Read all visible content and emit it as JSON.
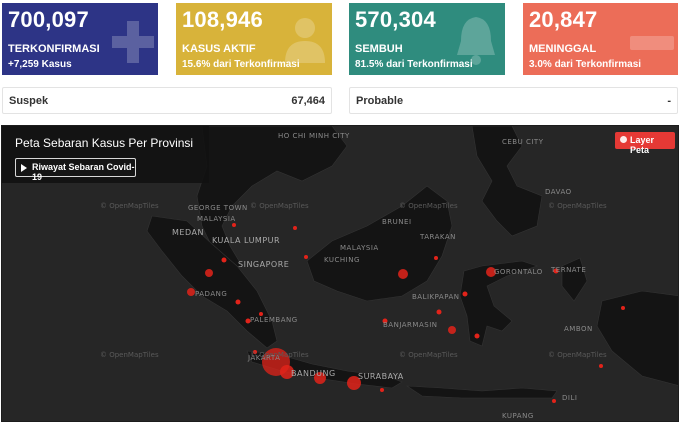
{
  "cards": [
    {
      "value": "700,097",
      "label": "TERKONFIRMASI",
      "sub": "+7,259 Kasus",
      "color": "#2d3486",
      "icon": "plus-icon"
    },
    {
      "value": "108,946",
      "label": "KASUS AKTIF",
      "sub": "15.6% dari Terkonfirmasi",
      "color": "#d8b33a",
      "icon": "patient-icon"
    },
    {
      "value": "570,304",
      "label": "SEMBUH",
      "sub": "81.5% dari Terkonfirmasi",
      "color": "#2f8c7e",
      "icon": "bell-icon"
    },
    {
      "value": "20,847",
      "label": "MENINGGAL",
      "sub": "3.0% dari Terkonfirmasi",
      "color": "#ec6d58",
      "icon": "minus-icon"
    }
  ],
  "suspek": {
    "label": "Suspek",
    "value": "67,464"
  },
  "probable": {
    "label": "Probable",
    "value": "-"
  },
  "map": {
    "title": "Peta Sebaran Kasus Per Provinsi",
    "history_button": "Riwayat Sebaran Covid-19",
    "layer_button": "Layer Peta",
    "attribution": "© OpenMapTiles",
    "places": [
      "HO CHI MINH CITY",
      "GEORGE TOWN",
      "MALAYSIA",
      "MEDAN",
      "KUALA LUMPUR",
      "SINGAPORE",
      "PADANG",
      "PALEMBANG",
      "KUCHING",
      "MALAYSIA",
      "TARAKAN",
      "BALIKPAPAN",
      "BANJARMASIN",
      "BANDUNG",
      "SURABAYA",
      "GORONTALO",
      "TERNATE",
      "AMBON",
      "CEBU CITY",
      "DAVAO",
      "KUPANG",
      "JAKARTA",
      "DILI",
      "BRUNEI"
    ]
  }
}
